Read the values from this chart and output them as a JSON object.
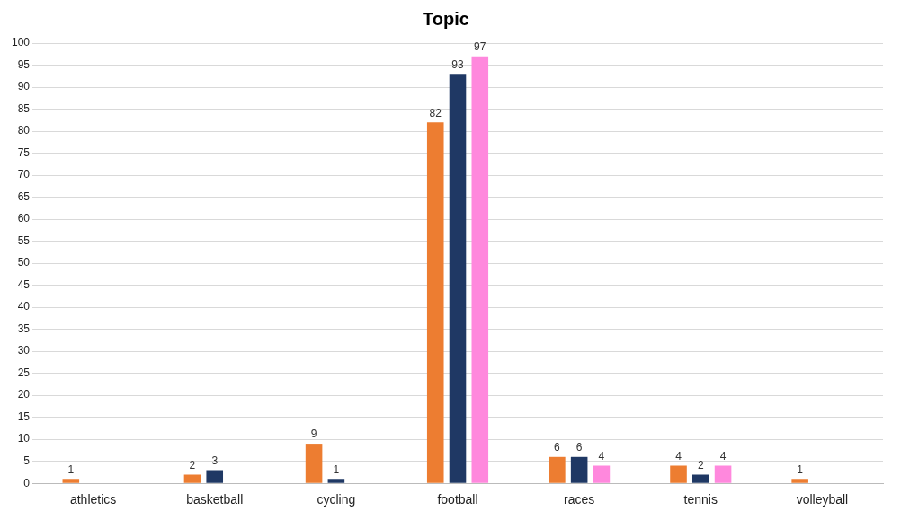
{
  "chart_data": {
    "type": "bar",
    "title": "Topic",
    "categories": [
      "athletics",
      "basketball",
      "cycling",
      "football",
      "races",
      "tennis",
      "volleyball"
    ],
    "series": [
      {
        "color": "#ed7d31",
        "values": [
          1,
          2,
          9,
          82,
          6,
          4,
          1
        ]
      },
      {
        "color": "#1f3864",
        "values": [
          null,
          3,
          1,
          93,
          6,
          2,
          null
        ]
      },
      {
        "color": "#ff88dd",
        "values": [
          null,
          null,
          null,
          97,
          4,
          4,
          null
        ]
      }
    ],
    "ylim": [
      0,
      100
    ],
    "yticks": [
      0,
      5,
      10,
      15,
      20,
      25,
      30,
      35,
      40,
      45,
      50,
      55,
      60,
      65,
      70,
      75,
      80,
      85,
      90,
      95,
      100
    ],
    "grid": "y",
    "data_labels": true
  }
}
